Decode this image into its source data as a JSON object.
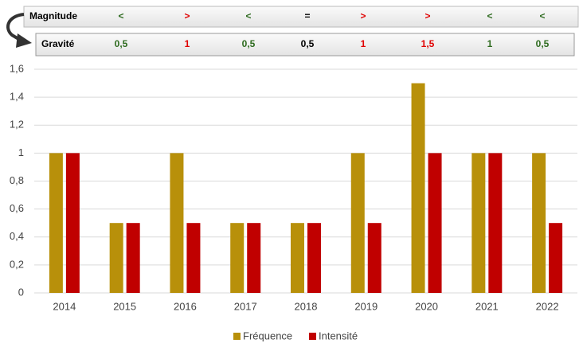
{
  "header": {
    "magnitude": {
      "label": "Magnitude",
      "cells": [
        {
          "text": "<",
          "color": "#2e6b1f"
        },
        {
          "text": ">",
          "color": "#e00000"
        },
        {
          "text": "<",
          "color": "#2e6b1f"
        },
        {
          "text": "=",
          "color": "#000000"
        },
        {
          "text": ">",
          "color": "#e00000"
        },
        {
          "text": ">",
          "color": "#e00000"
        },
        {
          "text": "<",
          "color": "#2e6b1f"
        },
        {
          "text": "<",
          "color": "#2e6b1f"
        }
      ]
    },
    "gravite": {
      "label": "Gravité",
      "cells": [
        {
          "text": "0,5",
          "color": "#2e6b1f"
        },
        {
          "text": "1",
          "color": "#e00000"
        },
        {
          "text": "0,5",
          "color": "#2e6b1f"
        },
        {
          "text": "0,5",
          "color": "#000000"
        },
        {
          "text": "1",
          "color": "#e00000"
        },
        {
          "text": "1,5",
          "color": "#e00000"
        },
        {
          "text": "1",
          "color": "#2e6b1f"
        },
        {
          "text": "0,5",
          "color": "#2e6b1f"
        }
      ]
    }
  },
  "chart_data": {
    "type": "bar",
    "categories": [
      "2014",
      "2015",
      "2016",
      "2017",
      "2018",
      "2019",
      "2020",
      "2021",
      "2022"
    ],
    "series": [
      {
        "name": "Fréquence",
        "color": "#b8900a",
        "values": [
          1,
          0.5,
          1,
          0.5,
          0.5,
          1,
          1.5,
          1,
          1
        ]
      },
      {
        "name": "Intensité",
        "color": "#c00000",
        "values": [
          1,
          0.5,
          0.5,
          0.5,
          0.5,
          0.5,
          1,
          1,
          0.5
        ]
      }
    ],
    "ylim": [
      0,
      1.6
    ],
    "yticks": [
      0,
      {
        "value": 0.2,
        "label": "0,2"
      },
      {
        "value": 0.4,
        "label": "0,4"
      },
      {
        "value": 0.6,
        "label": "0,6"
      },
      {
        "value": 0.8,
        "label": "0,8"
      },
      1,
      {
        "value": 1.2,
        "label": "1,2"
      },
      {
        "value": 1.4,
        "label": "1,4"
      },
      {
        "value": 1.6,
        "label": "1,6"
      }
    ],
    "grid": true,
    "legend": "bottom"
  }
}
